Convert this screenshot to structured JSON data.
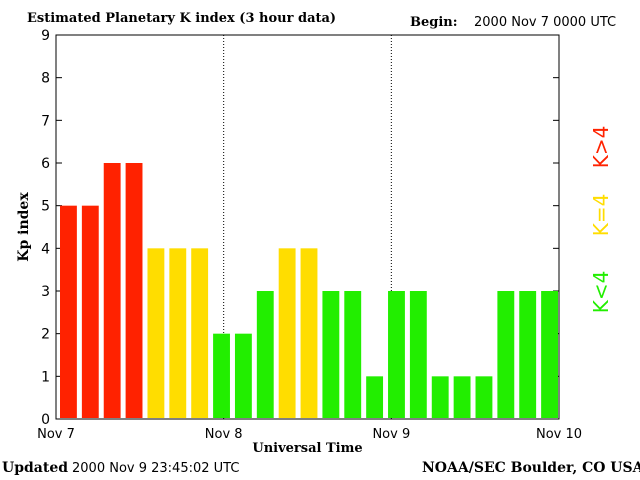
{
  "header": {
    "title": "Estimated Planetary K index (3 hour data)",
    "begin_label": "Begin:",
    "begin_value": "2000 Nov 7 0000 UTC"
  },
  "footer": {
    "updated_label": "Updated",
    "updated_value": "2000 Nov  9 23:45:02 UTC",
    "source": "NOAA/SEC Boulder, CO USA"
  },
  "legend": [
    {
      "text": "K>4",
      "color": "#ff2200"
    },
    {
      "text": "K=4",
      "color": "#ffdd00"
    },
    {
      "text": "K<4",
      "color": "#22ee00"
    }
  ],
  "chart_data": {
    "type": "bar",
    "title": "Estimated Planetary K index (3 hour data)",
    "xlabel": "Universal Time",
    "ylabel": "Kp index",
    "ylim": [
      0,
      9
    ],
    "yticks": [
      "0",
      "1",
      "2",
      "3",
      "4",
      "5",
      "6",
      "7",
      "8",
      "9"
    ],
    "xticks": [
      "Nov 7",
      "Nov 8",
      "Nov 9",
      "Nov 10"
    ],
    "day_separators": [
      "Nov 8",
      "Nov 9"
    ],
    "values": [
      5,
      5,
      6,
      6,
      4,
      4,
      4,
      2,
      2,
      3,
      4,
      4,
      3,
      3,
      1,
      3,
      3,
      1,
      1,
      1,
      3,
      3,
      3
    ],
    "colors": {
      "high": "#ff2200",
      "mid": "#ffdd00",
      "low": "#22ee00"
    }
  }
}
